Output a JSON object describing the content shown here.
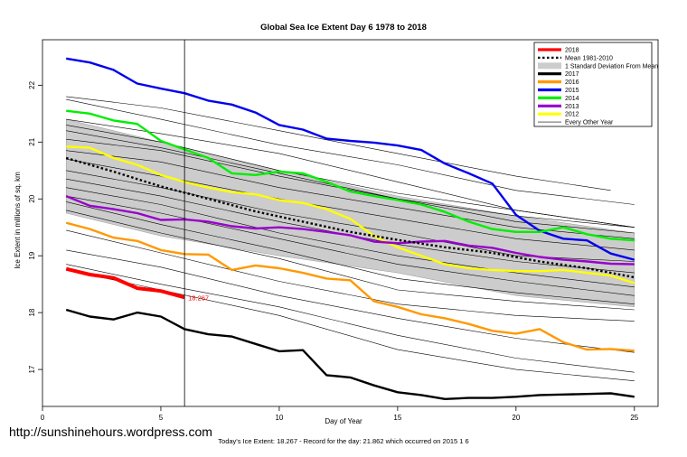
{
  "chart_data": {
    "type": "line",
    "title": "Global Sea Ice Extent Day 6 1978 to 2018",
    "xlabel": "Day of Year",
    "ylabel": "Ice Extent in millions of sq. km",
    "xlim": [
      0,
      26
    ],
    "ylim": [
      16.35,
      22.8
    ],
    "x_ticks": [
      0,
      5,
      10,
      15,
      20,
      25
    ],
    "y_ticks": [
      17,
      18,
      19,
      20,
      21,
      22
    ],
    "grid": false,
    "legend_position": "top-right",
    "today_marker_x": 6,
    "value_label": "18.267",
    "footer_note": "Today's Ice Extent: 18.267  - Record for the day: 21.862 which occurred on 2015 1 6",
    "watermark": "http://sunshinehours.wordpress.com",
    "colors": {
      "2018": "#ff0000",
      "2017": "#000000",
      "2016": "#ff9900",
      "2015": "#0000ee",
      "2014": "#00ee00",
      "2013": "#9900cc",
      "2012": "#ffff00",
      "mean": "#000000",
      "sd_band": "#cccccc",
      "every_other_year": "#000000"
    },
    "legend": [
      {
        "label": "2018",
        "style": "thick",
        "color": "#ff0000"
      },
      {
        "label": "Mean 1981-2010",
        "style": "dotted",
        "color": "#000000"
      },
      {
        "label": "1 Standard Deviation From Mean",
        "style": "band",
        "color": "#cccccc"
      },
      {
        "label": "2017",
        "style": "thick",
        "color": "#000000"
      },
      {
        "label": "2016",
        "style": "thick",
        "color": "#ff9900"
      },
      {
        "label": "2015",
        "style": "thick",
        "color": "#0000ee"
      },
      {
        "label": "2014",
        "style": "thick",
        "color": "#00ee00"
      },
      {
        "label": "2013",
        "style": "thick",
        "color": "#9900cc"
      },
      {
        "label": "2012",
        "style": "thick",
        "color": "#ffff00"
      },
      {
        "label": "Every Other Year",
        "style": "thin",
        "color": "#000000"
      }
    ],
    "band": {
      "x": [
        1,
        5,
        10,
        15,
        20,
        25
      ],
      "upper": [
        21.4,
        21.0,
        20.5,
        20.05,
        19.7,
        19.4
      ],
      "lower": [
        19.75,
        19.35,
        19.0,
        18.7,
        18.3,
        18.1
      ]
    },
    "mean": {
      "name": "Mean 1981-2010",
      "x": [
        1,
        3,
        5,
        7,
        9,
        11,
        13,
        15,
        17,
        19,
        21,
        23,
        25
      ],
      "values": [
        20.72,
        20.48,
        20.22,
        20.0,
        19.78,
        19.6,
        19.42,
        19.28,
        19.15,
        19.05,
        18.9,
        18.78,
        18.62
      ]
    },
    "thin_series": [
      {
        "x": [
          1,
          5,
          10,
          15,
          20,
          24
        ],
        "values": [
          21.8,
          21.6,
          21.2,
          20.8,
          20.4,
          20.15
        ]
      },
      {
        "x": [
          1,
          5,
          10,
          15,
          20,
          25
        ],
        "values": [
          21.75,
          21.4,
          20.95,
          20.6,
          20.15,
          19.9
        ]
      },
      {
        "x": [
          1,
          5,
          10,
          15,
          20,
          25
        ],
        "values": [
          21.4,
          21.15,
          20.8,
          20.3,
          19.8,
          19.5
        ]
      },
      {
        "x": [
          1,
          5,
          10,
          15,
          20,
          25
        ],
        "values": [
          21.3,
          21.0,
          20.5,
          20.1,
          19.8,
          19.5
        ]
      },
      {
        "x": [
          1,
          5,
          10,
          15,
          20,
          25
        ],
        "values": [
          21.2,
          20.9,
          20.45,
          20.0,
          19.7,
          19.5
        ]
      },
      {
        "x": [
          1,
          5,
          10,
          15,
          20,
          25
        ],
        "values": [
          21.05,
          20.85,
          20.4,
          20.0,
          19.6,
          19.4
        ]
      },
      {
        "x": [
          1,
          5,
          10,
          15,
          20,
          25
        ],
        "values": [
          20.85,
          20.65,
          20.2,
          19.85,
          19.5,
          19.3
        ]
      },
      {
        "x": [
          1,
          5,
          10,
          15,
          20,
          25
        ],
        "values": [
          20.7,
          20.4,
          20.0,
          19.65,
          19.3,
          19.1
        ]
      },
      {
        "x": [
          1,
          5,
          10,
          15,
          20,
          25
        ],
        "values": [
          20.5,
          20.2,
          19.75,
          19.4,
          19.0,
          18.9
        ]
      },
      {
        "x": [
          1,
          5,
          10,
          15,
          20,
          25
        ],
        "values": [
          20.35,
          20.05,
          19.6,
          19.2,
          18.9,
          18.7
        ]
      },
      {
        "x": [
          1,
          5,
          10,
          15,
          20,
          25
        ],
        "values": [
          20.2,
          19.9,
          19.4,
          19.0,
          18.7,
          18.45
        ]
      },
      {
        "x": [
          1,
          5,
          10,
          15,
          20,
          25
        ],
        "values": [
          20.05,
          19.75,
          19.3,
          18.85,
          18.55,
          18.3
        ]
      },
      {
        "x": [
          1,
          5,
          10,
          15,
          20,
          25
        ],
        "values": [
          19.95,
          19.55,
          19.1,
          18.6,
          18.35,
          18.15
        ]
      },
      {
        "x": [
          1,
          5,
          10,
          15,
          20,
          25
        ],
        "values": [
          19.8,
          19.4,
          18.95,
          18.4,
          18.2,
          18.05
        ]
      },
      {
        "x": [
          1,
          5,
          10,
          15,
          20,
          25
        ],
        "values": [
          19.45,
          19.05,
          18.55,
          18.15,
          17.95,
          17.85
        ]
      },
      {
        "x": [
          1,
          5,
          10,
          15,
          20,
          25
        ],
        "values": [
          19.1,
          18.8,
          18.3,
          17.9,
          17.55,
          17.3
        ]
      },
      {
        "x": [
          1,
          5,
          10,
          15,
          20,
          25
        ],
        "values": [
          18.85,
          18.5,
          18.1,
          17.6,
          17.2,
          16.95
        ]
      },
      {
        "x": [
          1,
          5,
          10,
          15,
          20,
          25
        ],
        "values": [
          18.75,
          18.4,
          17.95,
          17.35,
          17.0,
          16.8
        ]
      }
    ],
    "series": [
      {
        "name": "2015",
        "color": "#0000ee",
        "x": [
          1,
          2,
          3,
          4,
          5,
          6,
          7,
          8,
          9,
          10,
          11,
          12,
          13,
          14,
          15,
          16,
          17,
          18,
          19,
          20,
          21,
          22,
          23,
          24,
          25
        ],
        "values": [
          22.47,
          22.4,
          22.27,
          22.03,
          21.94,
          21.86,
          21.73,
          21.66,
          21.52,
          21.3,
          21.22,
          21.06,
          21.02,
          20.99,
          20.94,
          20.86,
          20.62,
          20.45,
          20.27,
          19.72,
          19.44,
          19.3,
          19.27,
          19.04,
          18.93
        ]
      },
      {
        "name": "2014",
        "color": "#00ee00",
        "x": [
          1,
          2,
          3,
          4,
          5,
          6,
          7,
          8,
          9,
          10,
          11,
          12,
          13,
          14,
          15,
          16,
          17,
          18,
          19,
          20,
          21,
          22,
          23,
          24,
          25
        ],
        "values": [
          21.55,
          21.5,
          21.38,
          21.32,
          21.02,
          20.87,
          20.72,
          20.45,
          20.42,
          20.48,
          20.45,
          20.3,
          20.13,
          20.05,
          19.98,
          19.9,
          19.77,
          19.6,
          19.47,
          19.42,
          19.42,
          19.5,
          19.38,
          19.3,
          19.27
        ]
      },
      {
        "name": "2012",
        "color": "#ffff00",
        "x": [
          1,
          2,
          3,
          4,
          5,
          6,
          7,
          8,
          9,
          10,
          11,
          12,
          13,
          14,
          15,
          16,
          17,
          18,
          19,
          20,
          21,
          22,
          23,
          24,
          25
        ],
        "values": [
          20.92,
          20.9,
          20.72,
          20.6,
          20.42,
          20.3,
          20.2,
          20.12,
          20.08,
          19.98,
          19.93,
          19.82,
          19.65,
          19.35,
          19.15,
          19.0,
          18.85,
          18.78,
          18.75,
          18.73,
          18.73,
          18.75,
          18.7,
          18.65,
          18.52
        ]
      },
      {
        "name": "2013",
        "color": "#9900cc",
        "x": [
          1,
          2,
          3,
          4,
          5,
          6,
          7,
          8,
          9,
          10,
          11,
          12,
          13,
          14,
          15,
          16,
          17,
          18,
          19,
          20,
          21,
          22,
          23,
          24,
          25
        ],
        "values": [
          20.05,
          19.88,
          19.82,
          19.75,
          19.63,
          19.64,
          19.6,
          19.52,
          19.48,
          19.5,
          19.47,
          19.42,
          19.36,
          19.25,
          19.22,
          19.25,
          19.26,
          19.18,
          19.14,
          19.05,
          18.98,
          18.93,
          18.9,
          18.86,
          18.85
        ]
      },
      {
        "name": "2016",
        "color": "#ff9900",
        "x": [
          1,
          2,
          3,
          4,
          5,
          6,
          7,
          8,
          9,
          10,
          11,
          12,
          13,
          14,
          15,
          16,
          17,
          18,
          19,
          20,
          21,
          22,
          23,
          24,
          25
        ],
        "values": [
          19.58,
          19.47,
          19.32,
          19.26,
          19.1,
          19.03,
          19.02,
          18.75,
          18.83,
          18.78,
          18.7,
          18.6,
          18.57,
          18.2,
          18.1,
          17.97,
          17.9,
          17.8,
          17.68,
          17.63,
          17.71,
          17.48,
          17.35,
          17.36,
          17.33
        ]
      },
      {
        "name": "2018",
        "color": "#ff0000",
        "x": [
          1,
          2,
          3,
          4,
          5,
          6
        ],
        "values": [
          18.77,
          18.67,
          18.61,
          18.43,
          18.38,
          18.267
        ]
      },
      {
        "name": "2017",
        "color": "#000000",
        "x": [
          1,
          2,
          3,
          4,
          5,
          6,
          7,
          8,
          9,
          10,
          11,
          12,
          13,
          14,
          15,
          16,
          17,
          18,
          19,
          20,
          21,
          22,
          23,
          24,
          25
        ],
        "values": [
          18.05,
          17.93,
          17.88,
          18.0,
          17.93,
          17.71,
          17.62,
          17.58,
          17.45,
          17.32,
          17.34,
          16.9,
          16.86,
          16.72,
          16.6,
          16.55,
          16.48,
          16.5,
          16.5,
          16.52,
          16.55,
          16.56,
          16.57,
          16.58,
          16.52
        ]
      }
    ]
  }
}
